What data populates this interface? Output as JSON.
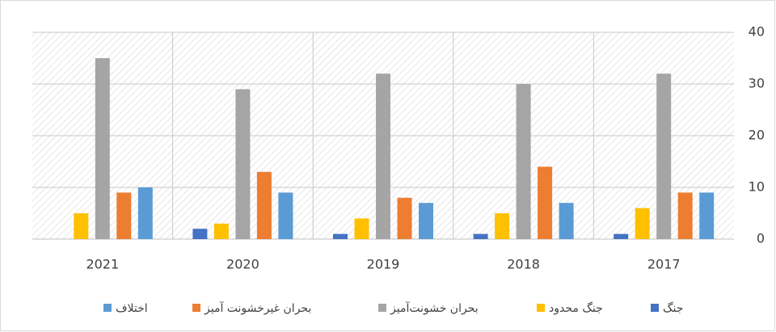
{
  "chart_data": {
    "type": "bar",
    "categories": [
      "2021",
      "2020",
      "2019",
      "2018",
      "2017"
    ],
    "series": [
      {
        "name": "جنگ",
        "color": "#4472c4",
        "values": [
          0,
          2,
          1,
          1,
          1
        ]
      },
      {
        "name": "جنگ محدود",
        "color": "#ffc000",
        "values": [
          5,
          3,
          4,
          5,
          6
        ]
      },
      {
        "name": "بحران خشونت‌آمیز",
        "color": "#a5a5a5",
        "values": [
          35,
          29,
          32,
          30,
          32
        ]
      },
      {
        "name": "بحران غیرخشونت آمیز",
        "color": "#ed7d31",
        "values": [
          9,
          13,
          8,
          14,
          9
        ]
      },
      {
        "name": "اختلاف",
        "color": "#5b9bd5",
        "values": [
          10,
          9,
          7,
          7,
          9
        ]
      }
    ],
    "ylim": [
      0,
      40
    ],
    "yticks": [
      0,
      10,
      20,
      30,
      40
    ],
    "y_axis_side": "right",
    "grid": true,
    "legend": "bottom"
  }
}
